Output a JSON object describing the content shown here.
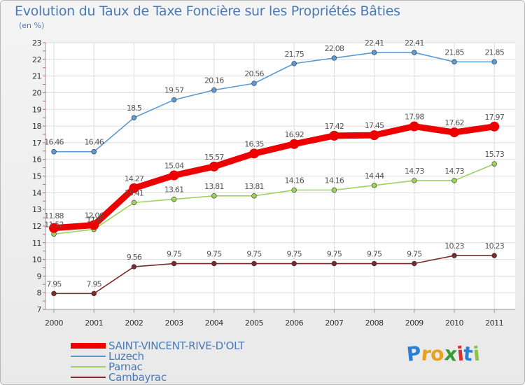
{
  "header": {
    "title": "Evolution du Taux de Taxe Foncière sur les Propriétés Bâties",
    "unit": "(en %)"
  },
  "chart_data": {
    "type": "line",
    "x": [
      "2000",
      "2001",
      "2002",
      "2003",
      "2004",
      "2005",
      "2006",
      "2007",
      "2008",
      "2009",
      "2010",
      "2011"
    ],
    "ylim": [
      7,
      23
    ],
    "yticks": [
      7,
      8,
      9,
      10,
      11,
      12,
      13,
      14,
      15,
      16,
      17,
      18,
      19,
      20,
      21,
      22,
      23
    ],
    "grid": true,
    "legend_position": "bottom-left",
    "series": [
      {
        "name": "SAINT-VINCENT-RIVE-D'OLT",
        "color": "#ee0000",
        "values": [
          11.88,
          12.06,
          14.27,
          15.04,
          15.57,
          16.35,
          16.92,
          17.42,
          17.45,
          17.98,
          17.62,
          17.97
        ],
        "labels": [
          "11.88",
          "12.06",
          "14.27",
          "15.04",
          "15.57",
          "16.35",
          "16.92",
          "17.42",
          "17.45",
          "17.98",
          "17.62",
          "17.97"
        ]
      },
      {
        "name": "Luzech",
        "color": "#5b9bd5",
        "values": [
          16.46,
          16.46,
          18.5,
          19.57,
          20.16,
          20.56,
          21.75,
          22.08,
          22.41,
          22.41,
          21.85,
          21.85
        ],
        "labels": [
          "16.46",
          "16.46",
          "18.5",
          "19.57",
          "20.16",
          "20.56",
          "21.75",
          "22.08",
          "22.41",
          "22.41",
          "21.85",
          "21.85"
        ]
      },
      {
        "name": "Parnac",
        "color": "#9dd35c",
        "values": [
          11.52,
          11.8,
          13.41,
          13.61,
          13.81,
          13.81,
          14.16,
          14.16,
          14.44,
          14.73,
          14.73,
          15.73
        ],
        "labels": [
          "11.52",
          "11.8",
          "13.41",
          "13.61",
          "13.81",
          "13.81",
          "14.16",
          "14.16",
          "14.44",
          "14.73",
          "14.73",
          "15.73"
        ]
      },
      {
        "name": "Cambayrac",
        "color": "#7a2a2a",
        "values": [
          7.95,
          7.95,
          9.56,
          9.75,
          9.75,
          9.75,
          9.75,
          9.75,
          9.75,
          9.75,
          10.23,
          10.23
        ],
        "labels": [
          "7.95",
          "7.95",
          "9.56",
          "9.75",
          "9.75",
          "9.75",
          "9.75",
          "9.75",
          "9.75",
          "9.75",
          "10.23",
          "10.23"
        ]
      }
    ]
  },
  "logo": {
    "letters": [
      "P",
      "r",
      "o",
      "x",
      "i",
      "t",
      "i"
    ],
    "colors": [
      "#2a7fd4",
      "#e8a020",
      "#e8a020",
      "#3a9a3a",
      "#d83030",
      "#2a7fd4",
      "#8bc34a"
    ]
  }
}
